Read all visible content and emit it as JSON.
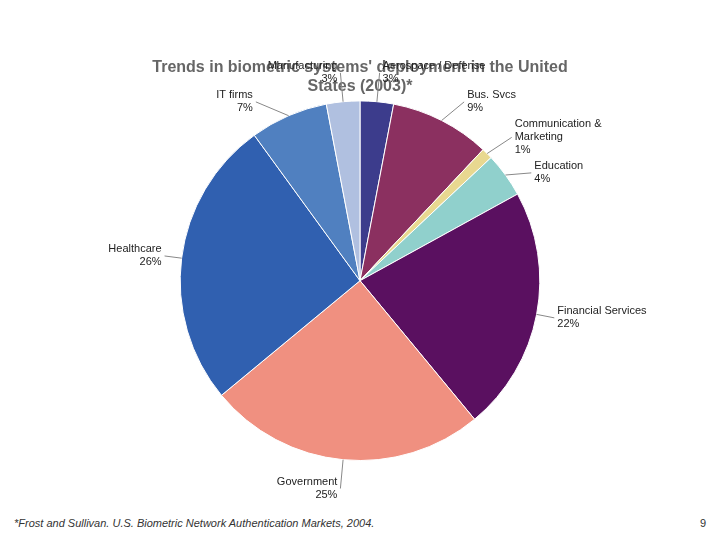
{
  "chart_data": {
    "type": "pie",
    "title": "Trends in biometric systems' deployment in the United\nStates (2003)*",
    "categories": [
      "Aerospace / Defense",
      "Bus. Svcs",
      "Communication &\nMarketing",
      "Education",
      "Financial Services",
      "Government",
      "Healthcare",
      "IT firms",
      "Manufacturing"
    ],
    "values": [
      3,
      9,
      1,
      4,
      22,
      25,
      26,
      7,
      3
    ],
    "value_labels": [
      "3%",
      "9%",
      "1%",
      "4%",
      "22%",
      "25%",
      "26%",
      "7%",
      "3%"
    ],
    "colors": [
      "#3c3c8c",
      "#8b3060",
      "#e8d890",
      "#90d0cc",
      "#5a1060",
      "#f09080",
      "#3060b0",
      "#5080c0",
      "#b0c0e0"
    ],
    "data_labels": true,
    "annotations": [
      "*Frost and Sullivan. U.S. Biometric Network Authentication Markets, 2004.",
      "9"
    ]
  }
}
